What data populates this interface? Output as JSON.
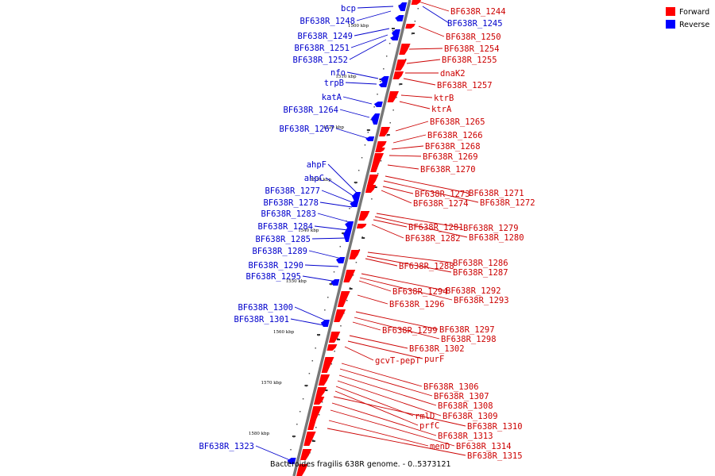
{
  "caption": "Bacteroides fragilis 638R genome. - 0..5373121",
  "legend": [
    {
      "label": "Forward",
      "color": "#ff0000"
    },
    {
      "label": "Reverse",
      "color": "#0000ff"
    }
  ],
  "ticks": [
    "1500 kbp",
    "1510 kbp",
    "1520 kbp",
    "1530 kbp",
    "1540 kbp",
    "1550 kbp",
    "1560 kbp",
    "1570 kbp",
    "1580 kbp"
  ],
  "reverse_genes": [
    "bcp",
    "BF638R_1248",
    "BF638R_1249",
    "BF638R_1251",
    "BF638R_1252",
    "nfo",
    "trpB",
    "katA",
    "BF638R_1264",
    "BF638R_1267",
    "ahpF",
    "ahpC",
    "BF638R_1277",
    "BF638R_1278",
    "BF638R_1283",
    "BF638R_1284",
    "BF638R_1285",
    "BF638R_1289",
    "BF638R_1290",
    "BF638R_1295",
    "BF638R_1300",
    "BF638R_1301",
    "BF638R_1323",
    "BF638R_1245"
  ],
  "forward_genes": [
    "BF638R_1244",
    "BF638R_1250",
    "BF638R_1254",
    "BF638R_1255",
    "dnaK2",
    "BF638R_1257",
    "ktrB",
    "ktrA",
    "BF638R_1265",
    "BF638R_1266",
    "BF638R_1268",
    "BF638R_1269",
    "BF638R_1270",
    "BF638R_1271",
    "BF638R_1272",
    "BF638R_1273",
    "BF638R_1274",
    "BF638R_1279",
    "BF638R_1280",
    "BF638R_1281",
    "BF638R_1282",
    "BF638R_1286",
    "BF638R_1287",
    "BF638R_1288",
    "BF638R_1292",
    "BF638R_1293",
    "BF638R_1294",
    "BF638R_1296",
    "BF638R_1297",
    "BF638R_1298",
    "BF638R_1299",
    "BF638R_1302",
    "purF",
    "gcvT-pepT",
    "BF638R_1306",
    "BF638R_1307",
    "BF638R_1308",
    "BF638R_1309",
    "rmlD",
    "prfC",
    "BF638R_1310",
    "BF638R_1313",
    "BF638R_1314",
    "menD",
    "BF638R_1315"
  ]
}
